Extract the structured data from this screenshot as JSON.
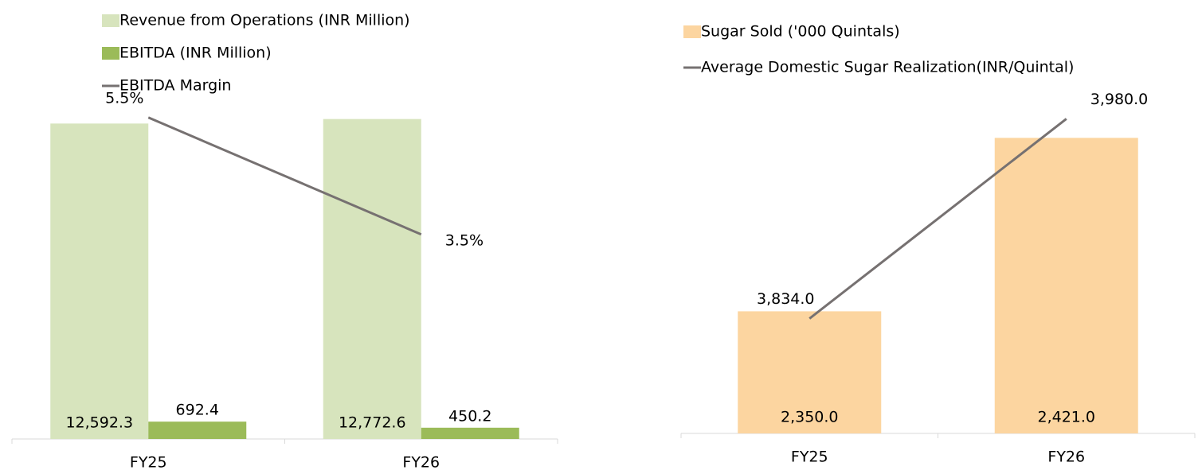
{
  "chart_data": [
    {
      "type": "bar",
      "categories": [
        "FY25",
        "FY26"
      ],
      "series": [
        {
          "name": "Revenue from Operations (INR Million)",
          "color": "#d7e4bd",
          "values": [
            12592.3,
            12772.6
          ],
          "value_labels": [
            "12,592.3",
            "12,772.6"
          ]
        },
        {
          "name": "EBITDA (INR Million)",
          "color": "#9bbb59",
          "values": [
            692.4,
            450.2
          ],
          "value_labels": [
            "692.4",
            "450.2"
          ]
        },
        {
          "name": "EBITDA Margin",
          "type": "line",
          "axis": "y2",
          "color": "#767171",
          "values": [
            5.5,
            3.5
          ],
          "value_labels": [
            "5.5%",
            "3.5%"
          ]
        }
      ],
      "ylim": [
        0,
        14000
      ],
      "y2lim": [
        0,
        6
      ]
    },
    {
      "type": "bar",
      "categories": [
        "FY25",
        "FY26"
      ],
      "series": [
        {
          "name": "Sugar Sold ('000 Quintals)",
          "color": "#fcd5a0",
          "values": [
            2350.0,
            2421.0
          ],
          "value_labels": [
            "2,350.0",
            "2,421.0"
          ]
        },
        {
          "name": "Average Domestic Sugar Realization(INR/Quintal)",
          "type": "line",
          "axis": "y2",
          "color": "#767171",
          "values": [
            3834.0,
            3980.0
          ],
          "value_labels": [
            "3,834.0",
            "3,980.0"
          ]
        }
      ],
      "ylim": [
        2300,
        2440
      ],
      "y2lim": [
        3750,
        4000
      ]
    }
  ]
}
